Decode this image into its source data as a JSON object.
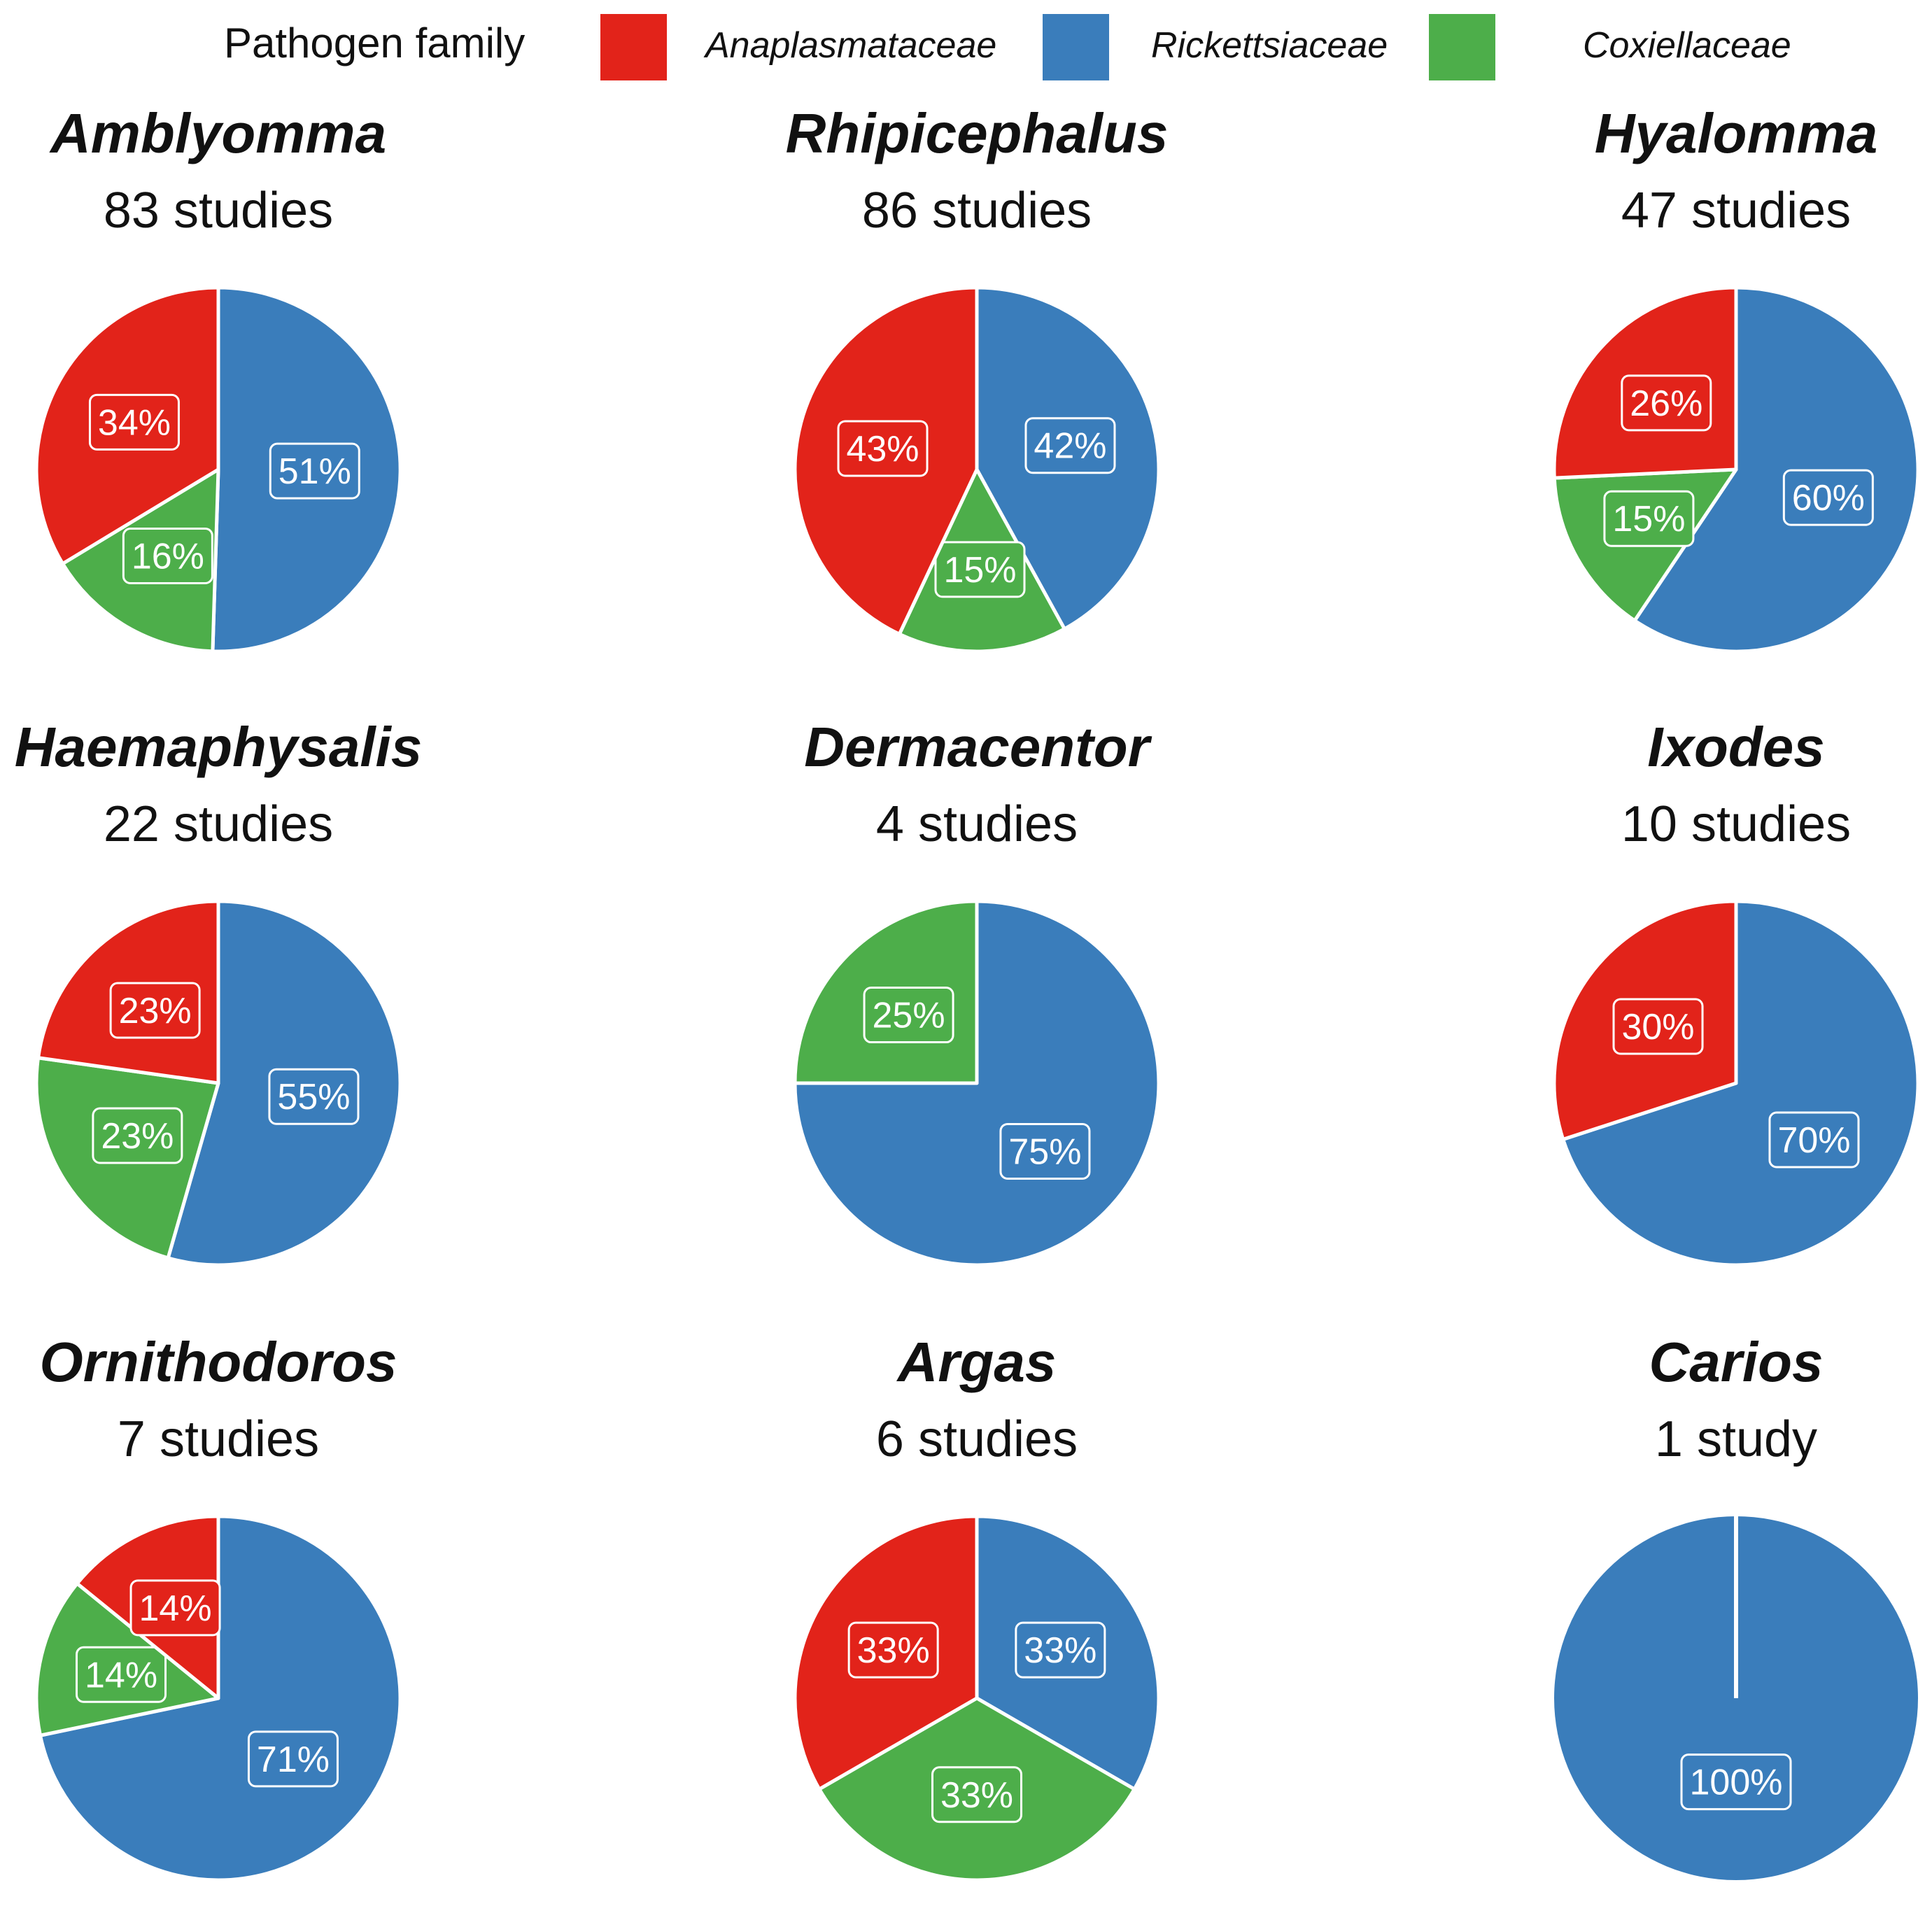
{
  "legend": {
    "title": "Pathogen family",
    "entries": [
      {
        "label": "Anaplasmataceae",
        "color": "#e2231a"
      },
      {
        "label": "Rickettsiaceae",
        "color": "#3a7dbb"
      },
      {
        "label": "Coxiellaceae",
        "color": "#4dae4a"
      }
    ]
  },
  "chart_data": [
    {
      "type": "pie",
      "title": "Amblyomma",
      "subtitle": "83 studies",
      "slices": [
        {
          "family": "Rickettsiaceae",
          "value": 51,
          "label": "51%"
        },
        {
          "family": "Coxiellaceae",
          "value": 16,
          "label": "16%"
        },
        {
          "family": "Anaplasmataceae",
          "value": 34,
          "label": "34%"
        }
      ]
    },
    {
      "type": "pie",
      "title": "Rhipicephalus",
      "subtitle": "86 studies",
      "slices": [
        {
          "family": "Rickettsiaceae",
          "value": 42,
          "label": "42%"
        },
        {
          "family": "Coxiellaceae",
          "value": 15,
          "label": "15%"
        },
        {
          "family": "Anaplasmataceae",
          "value": 43,
          "label": "43%"
        }
      ]
    },
    {
      "type": "pie",
      "title": "Hyalomma",
      "subtitle": "47 studies",
      "slices": [
        {
          "family": "Rickettsiaceae",
          "value": 60,
          "label": "60%"
        },
        {
          "family": "Coxiellaceae",
          "value": 15,
          "label": "15%"
        },
        {
          "family": "Anaplasmataceae",
          "value": 26,
          "label": "26%"
        }
      ]
    },
    {
      "type": "pie",
      "title": "Haemaphysalis",
      "subtitle": "22 studies",
      "slices": [
        {
          "family": "Rickettsiaceae",
          "value": 55,
          "label": "55%"
        },
        {
          "family": "Coxiellaceae",
          "value": 23,
          "label": "23%"
        },
        {
          "family": "Anaplasmataceae",
          "value": 23,
          "label": "23%"
        }
      ]
    },
    {
      "type": "pie",
      "title": "Dermacentor",
      "subtitle": "4 studies",
      "slices": [
        {
          "family": "Rickettsiaceae",
          "value": 75,
          "label": "75%"
        },
        {
          "family": "Coxiellaceae",
          "value": 25,
          "label": "25%"
        }
      ]
    },
    {
      "type": "pie",
      "title": "Ixodes",
      "subtitle": "10 studies",
      "slices": [
        {
          "family": "Rickettsiaceae",
          "value": 70,
          "label": "70%"
        },
        {
          "family": "Anaplasmataceae",
          "value": 30,
          "label": "30%"
        }
      ]
    },
    {
      "type": "pie",
      "title": "Ornithodoros",
      "subtitle": "7 studies",
      "slices": [
        {
          "family": "Rickettsiaceae",
          "value": 71,
          "label": "71%"
        },
        {
          "family": "Coxiellaceae",
          "value": 14,
          "label": "14%"
        },
        {
          "family": "Anaplasmataceae",
          "value": 14,
          "label": "14%"
        }
      ]
    },
    {
      "type": "pie",
      "title": "Argas",
      "subtitle": "6 studies",
      "slices": [
        {
          "family": "Rickettsiaceae",
          "value": 33,
          "label": "33%"
        },
        {
          "family": "Coxiellaceae",
          "value": 33,
          "label": "33%"
        },
        {
          "family": "Anaplasmataceae",
          "value": 33,
          "label": "33%"
        }
      ]
    },
    {
      "type": "pie",
      "title": "Carios",
      "subtitle": "1 study",
      "slices": [
        {
          "family": "Rickettsiaceae",
          "value": 100,
          "label": "100%"
        }
      ]
    }
  ]
}
